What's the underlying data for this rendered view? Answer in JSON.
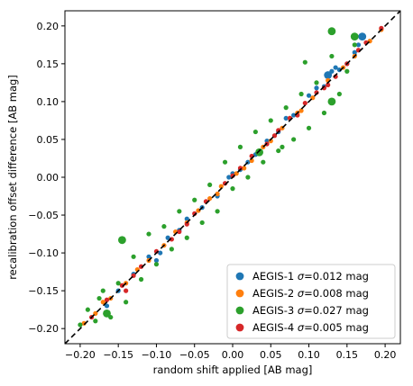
{
  "chart_data": {
    "type": "scatter",
    "title": "",
    "xlabel": "random shift applied [AB mag]",
    "ylabel": "recalibration offset difference [AB mag]",
    "xlim": [
      -0.22,
      0.22
    ],
    "ylim": [
      -0.22,
      0.22
    ],
    "x_ticks": [
      "-0.20",
      "-0.15",
      "-0.10",
      "-0.05",
      "0.00",
      "0.05",
      "0.10",
      "0.15",
      "0.20"
    ],
    "y_ticks": [
      "-0.20",
      "-0.15",
      "-0.10",
      "-0.05",
      "0.00",
      "0.05",
      "0.10",
      "0.15",
      "0.20"
    ],
    "grid": false,
    "legend_position": "bottom-right",
    "reference_line": {
      "style": "dashed",
      "color": "#000000",
      "from": [
        -0.22,
        -0.22
      ],
      "to": [
        0.22,
        0.22
      ]
    },
    "series": [
      {
        "name": "AEGIS-1",
        "sigma_label": "σ=0.012 mag",
        "color": "#1f77b4",
        "points": [
          [
            -0.165,
            -0.17
          ],
          [
            -0.15,
            -0.15
          ],
          [
            -0.13,
            -0.128
          ],
          [
            -0.11,
            -0.105
          ],
          [
            -0.095,
            -0.1
          ],
          [
            -0.085,
            -0.08
          ],
          [
            -0.06,
            -0.055
          ],
          [
            -0.04,
            -0.04
          ],
          [
            -0.02,
            -0.025
          ],
          [
            -0.005,
            0.0
          ],
          [
            0.01,
            0.01
          ],
          [
            0.02,
            0.02
          ],
          [
            0.03,
            0.03
          ],
          [
            0.045,
            0.048
          ],
          [
            0.06,
            0.06
          ],
          [
            0.08,
            0.082
          ],
          [
            0.1,
            0.108
          ],
          [
            0.12,
            0.12
          ],
          [
            0.13,
            0.14
          ],
          [
            0.135,
            0.145
          ],
          [
            0.14,
            0.142
          ],
          [
            0.15,
            0.15
          ],
          [
            0.16,
            0.165
          ],
          [
            0.17,
            0.185
          ],
          [
            0.165,
            0.175
          ],
          [
            -0.1,
            -0.11
          ],
          [
            -0.07,
            -0.07
          ],
          [
            0.0,
            0.005
          ],
          [
            0.07,
            0.078
          ],
          [
            0.11,
            0.118
          ]
        ],
        "big_points": [
          [
            0.125,
            0.135
          ],
          [
            0.17,
            0.186
          ]
        ]
      },
      {
        "name": "AEGIS-2",
        "sigma_label": "σ=0.008 mag",
        "color": "#ff7f0e",
        "points": [
          [
            -0.195,
            -0.193
          ],
          [
            -0.18,
            -0.18
          ],
          [
            -0.17,
            -0.165
          ],
          [
            -0.16,
            -0.16
          ],
          [
            -0.14,
            -0.14
          ],
          [
            -0.125,
            -0.122
          ],
          [
            -0.11,
            -0.11
          ],
          [
            -0.09,
            -0.09
          ],
          [
            -0.075,
            -0.072
          ],
          [
            -0.06,
            -0.06
          ],
          [
            -0.045,
            -0.044
          ],
          [
            -0.03,
            -0.028
          ],
          [
            -0.015,
            -0.012
          ],
          [
            0.005,
            0.005
          ],
          [
            0.015,
            0.012
          ],
          [
            0.025,
            0.022
          ],
          [
            0.035,
            0.035
          ],
          [
            0.05,
            0.048
          ],
          [
            0.065,
            0.065
          ],
          [
            0.075,
            0.078
          ],
          [
            0.09,
            0.088
          ],
          [
            0.105,
            0.105
          ],
          [
            0.125,
            0.128
          ],
          [
            0.145,
            0.145
          ],
          [
            0.16,
            0.16
          ],
          [
            0.18,
            0.18
          ],
          [
            0.195,
            0.195
          ],
          [
            -0.02,
            -0.022
          ],
          [
            0.04,
            0.04
          ],
          [
            0.085,
            0.085
          ]
        ],
        "big_points": []
      },
      {
        "name": "AEGIS-3",
        "sigma_label": "σ=0.027 mag",
        "color": "#2ca02c",
        "points": [
          [
            -0.2,
            -0.195
          ],
          [
            -0.19,
            -0.175
          ],
          [
            -0.18,
            -0.19
          ],
          [
            -0.17,
            -0.15
          ],
          [
            -0.16,
            -0.185
          ],
          [
            -0.15,
            -0.14
          ],
          [
            -0.14,
            -0.165
          ],
          [
            -0.13,
            -0.105
          ],
          [
            -0.12,
            -0.135
          ],
          [
            -0.11,
            -0.075
          ],
          [
            -0.1,
            -0.115
          ],
          [
            -0.09,
            -0.065
          ],
          [
            -0.08,
            -0.095
          ],
          [
            -0.07,
            -0.045
          ],
          [
            -0.06,
            -0.08
          ],
          [
            -0.05,
            -0.03
          ],
          [
            -0.04,
            -0.06
          ],
          [
            -0.03,
            -0.01
          ],
          [
            -0.02,
            -0.045
          ],
          [
            -0.01,
            0.02
          ],
          [
            0.0,
            -0.015
          ],
          [
            0.01,
            0.04
          ],
          [
            0.02,
            0.0
          ],
          [
            0.03,
            0.06
          ],
          [
            0.04,
            0.02
          ],
          [
            0.05,
            0.075
          ],
          [
            0.06,
            0.035
          ],
          [
            0.07,
            0.092
          ],
          [
            0.08,
            0.05
          ],
          [
            0.09,
            0.11
          ],
          [
            0.1,
            0.065
          ],
          [
            0.11,
            0.125
          ],
          [
            0.12,
            0.085
          ],
          [
            0.13,
            0.16
          ],
          [
            0.14,
            0.11
          ],
          [
            0.15,
            0.14
          ],
          [
            0.095,
            0.152
          ],
          [
            -0.175,
            -0.16
          ],
          [
            0.16,
            0.175
          ],
          [
            0.065,
            0.04
          ]
        ],
        "big_points": [
          [
            -0.145,
            -0.083
          ],
          [
            -0.165,
            -0.18
          ],
          [
            0.035,
            0.033
          ],
          [
            0.13,
            0.1
          ],
          [
            0.16,
            0.186
          ],
          [
            0.13,
            0.193
          ]
        ]
      },
      {
        "name": "AEGIS-4",
        "sigma_label": "σ=0.005 mag",
        "color": "#d62728",
        "points": [
          [
            -0.185,
            -0.185
          ],
          [
            -0.165,
            -0.162
          ],
          [
            -0.145,
            -0.143
          ],
          [
            -0.14,
            -0.15
          ],
          [
            -0.12,
            -0.118
          ],
          [
            -0.1,
            -0.098
          ],
          [
            -0.08,
            -0.082
          ],
          [
            -0.07,
            -0.072
          ],
          [
            -0.05,
            -0.048
          ],
          [
            -0.035,
            -0.032
          ],
          [
            -0.01,
            -0.008
          ],
          [
            0.01,
            0.012
          ],
          [
            0.025,
            0.028
          ],
          [
            0.045,
            0.044
          ],
          [
            0.055,
            0.055
          ],
          [
            0.075,
            0.078
          ],
          [
            0.085,
            0.082
          ],
          [
            0.095,
            0.098
          ],
          [
            0.11,
            0.112
          ],
          [
            0.125,
            0.122
          ],
          [
            0.135,
            0.133
          ],
          [
            0.15,
            0.15
          ],
          [
            0.165,
            0.168
          ],
          [
            0.175,
            0.178
          ],
          [
            0.195,
            0.197
          ],
          [
            -0.06,
            -0.062
          ],
          [
            0.0,
            0.002
          ],
          [
            0.06,
            0.062
          ],
          [
            0.12,
            0.118
          ],
          [
            -0.13,
            -0.13
          ]
        ],
        "big_points": []
      }
    ]
  }
}
